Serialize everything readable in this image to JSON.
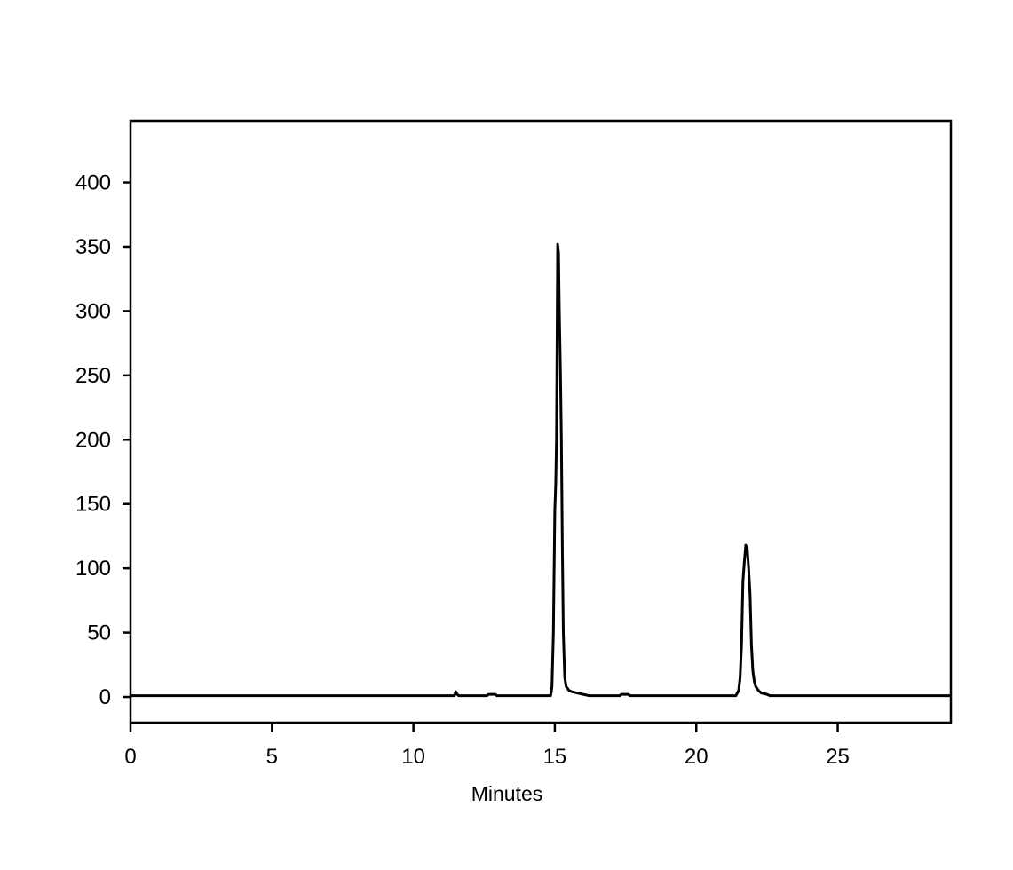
{
  "chart_data": {
    "type": "line",
    "title": "",
    "xlabel": "Minutes",
    "ylabel": "",
    "xlim": [
      0,
      29
    ],
    "ylim": [
      -20,
      448
    ],
    "grid": false,
    "legend": "none",
    "x_ticks": [
      0,
      5,
      10,
      15,
      20,
      25
    ],
    "y_ticks": [
      0,
      50,
      100,
      150,
      200,
      250,
      300,
      350,
      400
    ],
    "line_color": "#000000",
    "series": [
      {
        "x": [
          0,
          11.45,
          11.5,
          11.55,
          11.6,
          12.6,
          12.65,
          12.9,
          12.95,
          14.85,
          14.9,
          14.95,
          15.0,
          15.03,
          15.06,
          15.1,
          15.13,
          15.16,
          15.2,
          15.23,
          15.27,
          15.3,
          15.35,
          15.4,
          15.5,
          15.6,
          15.8,
          16.0,
          16.2,
          17.3,
          17.35,
          17.6,
          17.65,
          21.4,
          21.5,
          21.55,
          21.6,
          21.65,
          21.7,
          21.75,
          21.8,
          21.85,
          21.9,
          21.95,
          22.0,
          22.05,
          22.1,
          22.2,
          22.3,
          22.5,
          22.6,
          29
        ],
        "y": [
          1,
          1,
          4,
          2,
          1,
          1,
          2,
          2,
          1,
          1,
          8,
          50,
          145,
          165,
          200,
          352,
          345,
          300,
          250,
          200,
          110,
          50,
          15,
          8,
          5,
          4,
          3,
          2,
          1,
          1,
          2,
          2,
          1,
          1,
          5,
          15,
          40,
          90,
          105,
          118,
          116,
          100,
          80,
          40,
          20,
          12,
          8,
          5,
          3,
          2,
          1,
          1
        ]
      }
    ]
  }
}
